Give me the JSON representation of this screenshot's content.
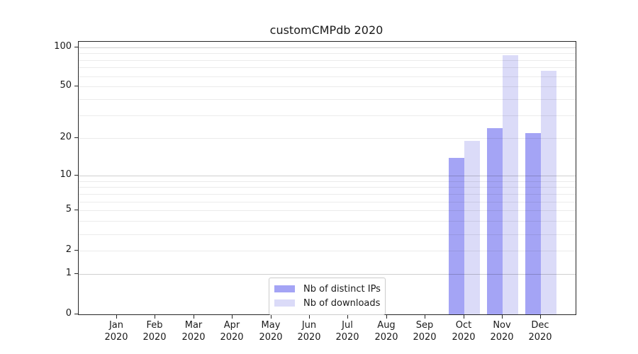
{
  "title": "customCMPdb 2020",
  "legend": {
    "items": [
      {
        "label": "Nb of distinct IPs",
        "color": "#a4a4f5"
      },
      {
        "label": "Nb of downloads",
        "color": "#dbdbf8"
      }
    ]
  },
  "colors": {
    "ips_bar": "#a4a4f5",
    "downloads_bar": "#dbdbf8",
    "axis": "#262626",
    "major_grid": "rgba(0,0,0,0.19)",
    "minor_grid": "rgba(0,0,0,0.08)"
  },
  "chart_data": {
    "type": "bar",
    "title": "customCMPdb 2020",
    "xlabel": "",
    "ylabel": "",
    "categories": [
      "Jan 2020",
      "Feb 2020",
      "Mar 2020",
      "Apr 2020",
      "May 2020",
      "Jun 2020",
      "Jul 2020",
      "Aug 2020",
      "Sep 2020",
      "Oct 2020",
      "Nov 2020",
      "Dec 2020"
    ],
    "series": [
      {
        "name": "Nb of distinct IPs",
        "color": "#a4a4f5",
        "values": [
          null,
          null,
          null,
          null,
          null,
          null,
          null,
          null,
          null,
          14,
          24,
          22
        ]
      },
      {
        "name": "Nb of downloads",
        "color": "#dbdbf8",
        "values": [
          null,
          null,
          null,
          null,
          null,
          null,
          null,
          null,
          null,
          19,
          87,
          66
        ]
      }
    ],
    "yscale": "log1p",
    "ylim": [
      0,
      101
    ],
    "ytick_labels": [
      0,
      1,
      2,
      5,
      10,
      20,
      50,
      100
    ],
    "ymajor_gridlines": [
      1,
      10,
      100
    ],
    "yminor_gridlines": [
      2,
      3,
      4,
      5,
      6,
      7,
      8,
      9,
      20,
      30,
      40,
      50,
      60,
      70,
      80,
      90
    ],
    "grid": "horizontal",
    "legend_position": "lower center"
  }
}
